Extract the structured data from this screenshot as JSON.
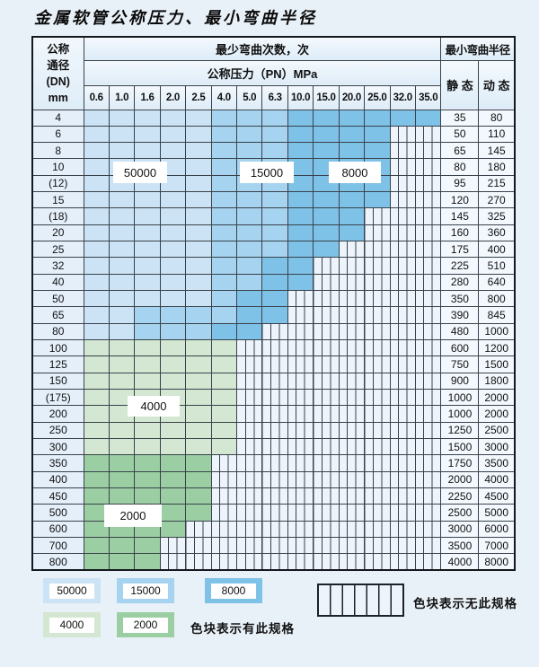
{
  "title": "金属软管公称压力、最小弯曲半径",
  "table": {
    "dn_header": "公称\n通径\n(DN)\nmm",
    "cycles_header": "最少弯曲次数，次",
    "pressure_header": "公称压力（PN）MPa",
    "radius_header": "最小弯曲半径",
    "static_header": "静 态",
    "dynamic_header": "动 态",
    "pressure_columns": [
      "0.6",
      "1.0",
      "1.6",
      "2.0",
      "2.5",
      "4.0",
      "5.0",
      "6.3",
      "10.0",
      "15.0",
      "20.0",
      "25.0",
      "32.0",
      "35.0"
    ],
    "cell_codes": {
      "L": "50000",
      "M": "15000",
      "D": "8000",
      "G": "4000",
      "E": "2000",
      "S": "no-spec"
    },
    "rows": [
      {
        "dn": "4",
        "cells": "LLLLLMMMDDDDDD",
        "static": "35",
        "dynamic": "80"
      },
      {
        "dn": "6",
        "cells": "LLLLLMMMDDDDSS",
        "static": "50",
        "dynamic": "110"
      },
      {
        "dn": "8",
        "cells": "LLLLLMMMDDDDSS",
        "static": "65",
        "dynamic": "145"
      },
      {
        "dn": "10",
        "cells": "LLLLLMMMDDDDSS",
        "static": "80",
        "dynamic": "180"
      },
      {
        "dn": "(12)",
        "cells": "LLLLLMMMDDDDSS",
        "static": "95",
        "dynamic": "215"
      },
      {
        "dn": "15",
        "cells": "LLLLLMMMDDDDSS",
        "static": "120",
        "dynamic": "270"
      },
      {
        "dn": "(18)",
        "cells": "LLLLLMMMDDDSSS",
        "static": "145",
        "dynamic": "325"
      },
      {
        "dn": "20",
        "cells": "LLLLLMMMDDDSSS",
        "static": "160",
        "dynamic": "360"
      },
      {
        "dn": "25",
        "cells": "LLLLLMMMDDSSSS",
        "static": "175",
        "dynamic": "400"
      },
      {
        "dn": "32",
        "cells": "LLLLLMMDDSSSSS",
        "static": "225",
        "dynamic": "510"
      },
      {
        "dn": "40",
        "cells": "LLLLLMMDDSSSSS",
        "static": "280",
        "dynamic": "640"
      },
      {
        "dn": "50",
        "cells": "LLLLLMDDSSSSSS",
        "static": "350",
        "dynamic": "800"
      },
      {
        "dn": "65",
        "cells": "LLMMMMDDSSSSSS",
        "static": "390",
        "dynamic": "845"
      },
      {
        "dn": "80",
        "cells": "LLMMMDDSSSSSSS",
        "static": "480",
        "dynamic": "1000"
      },
      {
        "dn": "100",
        "cells": "GGGGGGSSSSSSSS",
        "static": "600",
        "dynamic": "1200"
      },
      {
        "dn": "125",
        "cells": "GGGGGGSSSSSSSS",
        "static": "750",
        "dynamic": "1500"
      },
      {
        "dn": "150",
        "cells": "GGGGGGSSSSSSSS",
        "static": "900",
        "dynamic": "1800"
      },
      {
        "dn": "(175)",
        "cells": "GGGGGGSSSSSSSS",
        "static": "1000",
        "dynamic": "2000"
      },
      {
        "dn": "200",
        "cells": "GGGGGGSSSSSSSS",
        "static": "1000",
        "dynamic": "2000"
      },
      {
        "dn": "250",
        "cells": "GGGGGGSSSSSSSS",
        "static": "1250",
        "dynamic": "2500"
      },
      {
        "dn": "300",
        "cells": "GGGGGGSSSSSSSS",
        "static": "1500",
        "dynamic": "3000"
      },
      {
        "dn": "350",
        "cells": "EEEEESSSSSSSSS",
        "static": "1750",
        "dynamic": "3500"
      },
      {
        "dn": "400",
        "cells": "EEEEESSSSSSSSS",
        "static": "2000",
        "dynamic": "4000"
      },
      {
        "dn": "450",
        "cells": "EEEEESSSSSSSSS",
        "static": "2250",
        "dynamic": "4500"
      },
      {
        "dn": "500",
        "cells": "EEEEESSSSSSSSS",
        "static": "2500",
        "dynamic": "5000"
      },
      {
        "dn": "600",
        "cells": "EEEESSSSSSSSSS",
        "static": "3000",
        "dynamic": "6000"
      },
      {
        "dn": "700",
        "cells": "EEESSSSSSSSSSS",
        "static": "3500",
        "dynamic": "7000"
      },
      {
        "dn": "800",
        "cells": "EEESSSSSSSSSSS",
        "static": "4000",
        "dynamic": "8000"
      }
    ]
  },
  "overlay_labels": [
    {
      "text": "50000"
    },
    {
      "text": "15000"
    },
    {
      "text": "8000"
    },
    {
      "text": "4000"
    },
    {
      "text": "2000"
    }
  ],
  "legend": {
    "items": [
      {
        "label": "50000",
        "color": "#cbe3f5"
      },
      {
        "label": "15000",
        "color": "#a6d3ef"
      },
      {
        "label": "8000",
        "color": "#7fc2e8"
      },
      {
        "label": "4000",
        "color": "#d3e7d2"
      },
      {
        "label": "2000",
        "color": "#9bcfa3"
      }
    ],
    "has_spec_text": "色块表示有此规格",
    "no_spec_text": "色块表示无此规格"
  },
  "colors": {
    "cycles_50000": "#cbe3f5",
    "cycles_15000": "#a6d3ef",
    "cycles_8000": "#7fc2e8",
    "cycles_4000": "#d3e7d2",
    "cycles_2000": "#9bcfa3",
    "no_spec_fill": "#eef4fb",
    "grid_line": "#39424a",
    "page_background": "#e9f1f8"
  }
}
